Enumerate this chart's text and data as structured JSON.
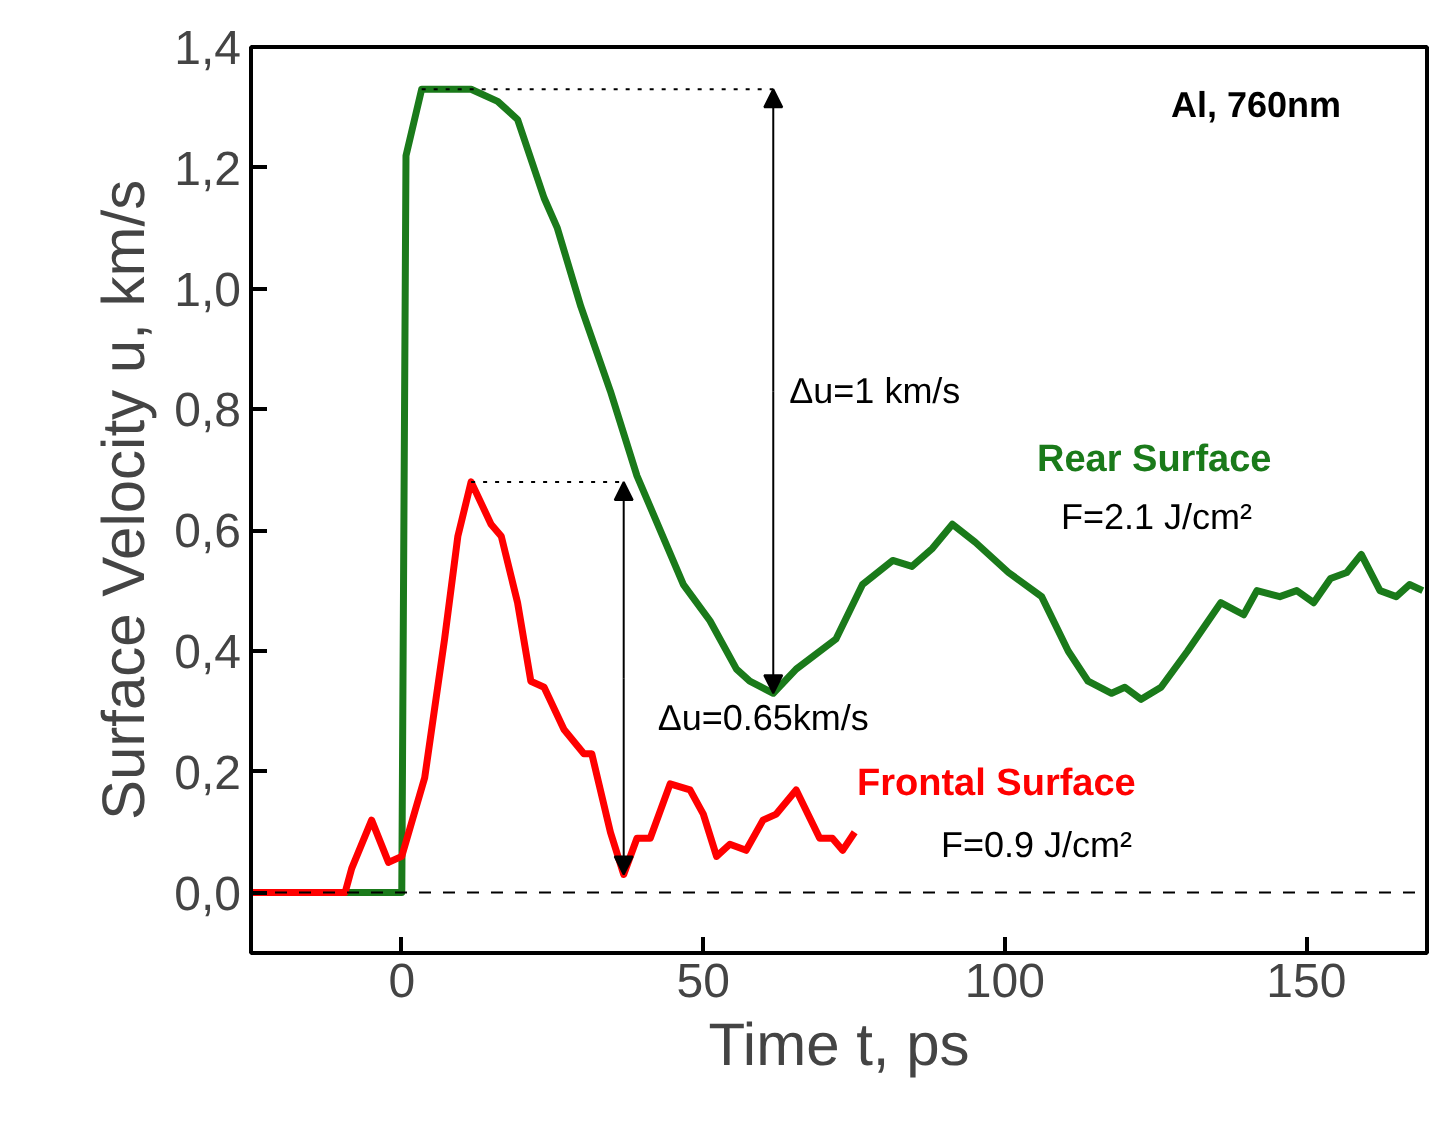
{
  "chart_data": {
    "type": "line",
    "xlabel": "Time t, ps",
    "ylabel": "Surface Velocity u, km/s",
    "xlim": [
      -25,
      170
    ],
    "ylim": [
      -0.1,
      1.4
    ],
    "xticks": [
      0,
      50,
      100,
      150
    ],
    "yticks": [
      {
        "value": 0,
        "label": "0,0"
      },
      {
        "value": 0.2,
        "label": "0,2"
      },
      {
        "value": 0.4,
        "label": "0,4"
      },
      {
        "value": 0.6,
        "label": "0,6"
      },
      {
        "value": 0.8,
        "label": "0,8"
      },
      {
        "value": 1.0,
        "label": "1,0"
      },
      {
        "value": 1.2,
        "label": "1,2"
      },
      {
        "value": 1.4,
        "label": "1,4"
      }
    ],
    "series": [
      {
        "name": "Rear Surface",
        "color": "#1a7a1a",
        "x": [
          -13.3,
          0,
          0.7,
          3.3,
          11.5,
          15.9,
          19.2,
          23.6,
          25.8,
          29.7,
          34.6,
          39.0,
          46.7,
          51.1,
          55.5,
          57.7,
          61.6,
          65.4,
          72.0,
          76.4,
          81.4,
          84.6,
          88.0,
          91.3,
          95.1,
          100.6,
          106.1,
          110.5,
          113.8,
          117.7,
          119.9,
          122.6,
          125.9,
          130.3,
          135.8,
          139.6,
          141.8,
          145.6,
          148.4,
          151.2,
          154.0,
          156.7,
          159.1,
          162.2,
          164.9,
          167.1,
          169.3
        ],
        "values": [
          0,
          0,
          1.22,
          1.33,
          1.33,
          1.31,
          1.28,
          1.15,
          1.1,
          0.97,
          0.83,
          0.69,
          0.51,
          0.45,
          0.37,
          0.35,
          0.33,
          0.37,
          0.42,
          0.51,
          0.55,
          0.54,
          0.57,
          0.61,
          0.58,
          0.53,
          0.49,
          0.4,
          0.35,
          0.33,
          0.34,
          0.32,
          0.34,
          0.4,
          0.48,
          0.46,
          0.5,
          0.49,
          0.5,
          0.48,
          0.52,
          0.53,
          0.56,
          0.5,
          0.49,
          0.51,
          0.5
        ]
      },
      {
        "name": "Frontal Surface",
        "color": "#ff0000",
        "x": [
          -25,
          -9.4,
          -8.3,
          -5.0,
          -2.2,
          0,
          3.8,
          7.1,
          9.3,
          11.5,
          14.8,
          16.5,
          19.2,
          21.4,
          23.6,
          26.9,
          30.2,
          31.5,
          34.6,
          36.8,
          39.0,
          41.2,
          44.5,
          47.8,
          50.0,
          52.2,
          54.4,
          57.1,
          59.9,
          62.1,
          65.4,
          69.3,
          71.4,
          73.1,
          75.1
        ],
        "values": [
          0,
          0,
          0.04,
          0.12,
          0.05,
          0.06,
          0.19,
          0.42,
          0.59,
          0.68,
          0.61,
          0.59,
          0.48,
          0.35,
          0.34,
          0.27,
          0.23,
          0.23,
          0.1,
          0.03,
          0.09,
          0.09,
          0.18,
          0.17,
          0.13,
          0.06,
          0.08,
          0.07,
          0.12,
          0.13,
          0.17,
          0.09,
          0.09,
          0.07,
          0.1
        ]
      }
    ],
    "ref_lines": [
      {
        "axis": "y",
        "value": 0,
        "line_style": "dashed",
        "color": "#000000"
      }
    ],
    "annotations": [
      "Al, 760nm",
      "F=2.1 J/cm²",
      "F=0.9 J/cm²",
      {
        "text": "Δu=1 km/s",
        "x": 61.6,
        "y": 0.33
      },
      {
        "text": "Δu=0.65km/s",
        "x": 36.8,
        "y": 0.03
      }
    ],
    "line_style": "solid",
    "marker": "none",
    "grid": false
  }
}
